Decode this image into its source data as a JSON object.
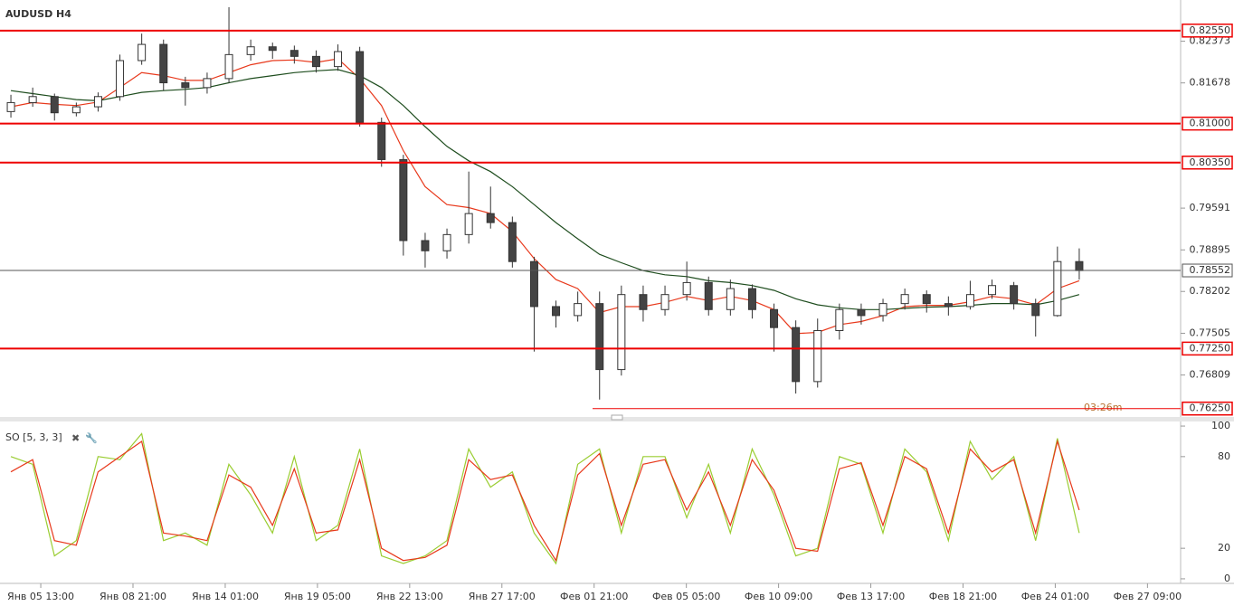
{
  "chart_data": [
    {
      "type": "candlestick",
      "title": "AUDUSD H4",
      "open": [
        0.812,
        0.8135,
        0.8145,
        0.8118,
        0.8128,
        0.8145,
        0.8205,
        0.8232,
        0.8168,
        0.816,
        0.8175,
        0.8215,
        0.8228,
        0.8222,
        0.8212,
        0.8195,
        0.822,
        0.8102,
        0.804,
        0.7905,
        0.7888,
        0.7915,
        0.795,
        0.7935,
        0.787,
        0.7795,
        0.778,
        0.78,
        0.769,
        0.7815,
        0.779,
        0.7815,
        0.7835,
        0.779,
        0.7825,
        0.779,
        0.776,
        0.767,
        0.7755,
        0.779,
        0.778,
        0.78,
        0.7815,
        0.78,
        0.7795,
        0.7815,
        0.783,
        0.78,
        0.778,
        0.787
      ],
      "high": [
        0.8148,
        0.816,
        0.815,
        0.8135,
        0.8152,
        0.8215,
        0.825,
        0.824,
        0.8178,
        0.8185,
        0.8294,
        0.824,
        0.8235,
        0.823,
        0.8222,
        0.8232,
        0.8228,
        0.811,
        0.8048,
        0.7918,
        0.7925,
        0.802,
        0.7995,
        0.7945,
        0.7878,
        0.7805,
        0.782,
        0.782,
        0.783,
        0.783,
        0.783,
        0.787,
        0.7845,
        0.784,
        0.7832,
        0.78,
        0.7772,
        0.7775,
        0.78,
        0.78,
        0.7808,
        0.7825,
        0.7822,
        0.7812,
        0.7838,
        0.784,
        0.7836,
        0.7808,
        0.7895,
        0.7892
      ],
      "low": [
        0.811,
        0.8128,
        0.8105,
        0.8112,
        0.812,
        0.8138,
        0.8198,
        0.8155,
        0.813,
        0.815,
        0.8168,
        0.8205,
        0.8208,
        0.82,
        0.8185,
        0.8188,
        0.8095,
        0.8028,
        0.788,
        0.786,
        0.7875,
        0.79,
        0.7925,
        0.786,
        0.772,
        0.776,
        0.777,
        0.764,
        0.768,
        0.777,
        0.778,
        0.7805,
        0.778,
        0.778,
        0.7775,
        0.772,
        0.765,
        0.766,
        0.774,
        0.7765,
        0.777,
        0.779,
        0.7785,
        0.778,
        0.779,
        0.7808,
        0.779,
        0.7745,
        0.7778,
        0.784
      ],
      "close": [
        0.8135,
        0.8145,
        0.8118,
        0.8128,
        0.8145,
        0.8205,
        0.8232,
        0.8168,
        0.816,
        0.8175,
        0.8215,
        0.8228,
        0.8222,
        0.8212,
        0.8195,
        0.822,
        0.8102,
        0.804,
        0.7905,
        0.7888,
        0.7915,
        0.795,
        0.7935,
        0.787,
        0.7795,
        0.778,
        0.78,
        0.769,
        0.7815,
        0.779,
        0.7815,
        0.7835,
        0.779,
        0.7825,
        0.779,
        0.776,
        0.767,
        0.7755,
        0.779,
        0.778,
        0.78,
        0.7815,
        0.78,
        0.7795,
        0.7815,
        0.783,
        0.78,
        0.778,
        0.787,
        0.7855
      ],
      "series": [
        {
          "color": "#e8391c",
          "values": [
            0.8128,
            0.8135,
            0.8132,
            0.813,
            0.8136,
            0.816,
            0.8185,
            0.818,
            0.8172,
            0.8172,
            0.8185,
            0.8198,
            0.8205,
            0.8206,
            0.8202,
            0.8208,
            0.8175,
            0.813,
            0.8055,
            0.7995,
            0.7965,
            0.796,
            0.795,
            0.792,
            0.7875,
            0.784,
            0.7825,
            0.7785,
            0.7795,
            0.7795,
            0.7802,
            0.7812,
            0.7805,
            0.7812,
            0.7805,
            0.779,
            0.775,
            0.7752,
            0.7765,
            0.777,
            0.778,
            0.7795,
            0.7797,
            0.7797,
            0.7803,
            0.7812,
            0.7808,
            0.7798,
            0.7825,
            0.7838
          ]
        },
        {
          "color": "#1e4d1e",
          "values": [
            0.8155,
            0.815,
            0.8145,
            0.814,
            0.8138,
            0.8145,
            0.8152,
            0.8155,
            0.8157,
            0.816,
            0.8168,
            0.8175,
            0.818,
            0.8185,
            0.8188,
            0.819,
            0.818,
            0.816,
            0.813,
            0.8095,
            0.8062,
            0.8038,
            0.802,
            0.7995,
            0.7965,
            0.7935,
            0.7908,
            0.7882,
            0.7868,
            0.7855,
            0.7848,
            0.7845,
            0.7838,
            0.7835,
            0.783,
            0.7822,
            0.7808,
            0.7798,
            0.7793,
            0.779,
            0.779,
            0.7792,
            0.7794,
            0.7795,
            0.7797,
            0.78,
            0.78,
            0.7798,
            0.7805,
            0.7815
          ]
        }
      ],
      "levels": [
        {
          "value": 0.8255,
          "label": "0.82550"
        },
        {
          "value": 0.81,
          "label": "0.81000"
        },
        {
          "value": 0.8035,
          "label": "0.80350"
        },
        {
          "value": 0.7725,
          "label": "0.77250"
        },
        {
          "value": 0.7625,
          "label": "0.76250"
        }
      ],
      "current_price": 0.78552,
      "annotation": "03:26m",
      "xlim": [
        -0.5,
        53.65
      ],
      "xticks": [
        {
          "value": 1.37,
          "label": "Янв 05 13:00"
        },
        {
          "value": 5.6,
          "label": "Янв 08 21:00"
        },
        {
          "value": 9.83,
          "label": "Янв 14 01:00"
        },
        {
          "value": 14.06,
          "label": "Янв 19 05:00"
        },
        {
          "value": 18.29,
          "label": "Янв 22 13:00"
        },
        {
          "value": 22.52,
          "label": "Янв 27 17:00"
        },
        {
          "value": 26.75,
          "label": "Фев 01 21:00"
        },
        {
          "value": 30.98,
          "label": "Фев 05 05:00"
        },
        {
          "value": 35.21,
          "label": "Фев 10 09:00"
        },
        {
          "value": 39.44,
          "label": "Фев 13 17:00"
        },
        {
          "value": 43.67,
          "label": "Фев 18 21:00"
        },
        {
          "value": 47.9,
          "label": "Фев 24 01:00"
        },
        {
          "value": 52.13,
          "label": "Фев 27 09:00"
        }
      ],
      "ylim": [
        0.7611,
        0.8306
      ],
      "yticks": [
        0.82373,
        0.81678,
        0.79591,
        0.78895,
        0.78202,
        0.77505,
        0.76809
      ]
    },
    {
      "type": "line",
      "title": "SO [5, 3, 3]",
      "series": [
        {
          "color": "#9acd32",
          "values": [
            80,
            75,
            15,
            25,
            80,
            78,
            95,
            25,
            30,
            22,
            75,
            55,
            30,
            80,
            25,
            35,
            85,
            15,
            10,
            15,
            25,
            85,
            60,
            70,
            30,
            10,
            75,
            85,
            30,
            80,
            80,
            40,
            75,
            30,
            85,
            55,
            15,
            20,
            80,
            75,
            30,
            85,
            70,
            25,
            90,
            65,
            80,
            25,
            92,
            30
          ]
        },
        {
          "color": "#e8391c",
          "values": [
            70,
            78,
            25,
            22,
            70,
            80,
            90,
            30,
            28,
            25,
            68,
            60,
            35,
            72,
            30,
            32,
            78,
            20,
            12,
            14,
            22,
            78,
            65,
            68,
            35,
            12,
            68,
            82,
            35,
            75,
            78,
            45,
            70,
            35,
            78,
            58,
            20,
            18,
            72,
            76,
            35,
            80,
            72,
            30,
            85,
            70,
            78,
            30,
            90,
            45
          ]
        }
      ],
      "ylim": [
        -3,
        103
      ],
      "yticks": [
        0,
        20,
        80,
        100
      ]
    }
  ]
}
